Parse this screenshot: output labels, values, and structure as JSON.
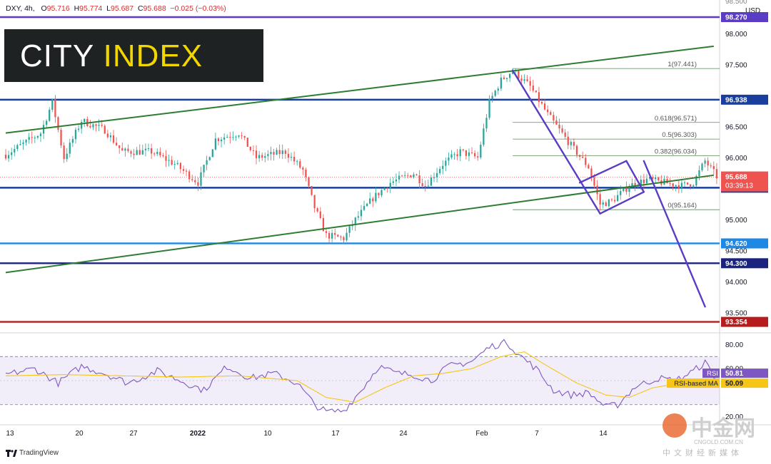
{
  "header": {
    "symbol": "DXY, 4h,",
    "o_label": "O",
    "o": "95.716",
    "h_label": "H",
    "h": "95.774",
    "l_label": "L",
    "l": "95.687",
    "c_label": "C",
    "c": "95.688",
    "chg": "−0.025 (−0.03%)"
  },
  "logo": {
    "part1": "CITY",
    "part2": "INDEX"
  },
  "footer": {
    "brand": "TradingView"
  },
  "watermark": {
    "name": "中金网",
    "url": "CNGOLD.COM.CN",
    "sub": "中文财经新媒体"
  },
  "colors": {
    "green": "#2e7d32",
    "navy": "#1a237e",
    "blue": "#1e88e5",
    "red": "#b71c1c",
    "purple": "#5b3cc4",
    "up": "#26a69a",
    "down": "#ef5350"
  },
  "chart_data": {
    "type": "candlestick",
    "symbol": "DXY",
    "timeframe": "4h",
    "currency": "USD",
    "ylim": [
      93.2,
      98.5
    ],
    "y_ticks": [
      "98.000",
      "97.500",
      "96.500",
      "96.000",
      "95.000",
      "94.500",
      "94.000",
      "93.500"
    ],
    "y_tick_values": [
      98.0,
      97.5,
      96.5,
      96.0,
      95.0,
      94.5,
      94.0,
      93.5
    ],
    "top_partial_tick": "98.500",
    "x_ticks": [
      "13",
      "20",
      "27",
      "2022",
      "10",
      "17",
      "24",
      "Feb",
      "7",
      "14"
    ],
    "price_levels": [
      {
        "label": "98.270",
        "value": 98.27,
        "color": "#5b3cc4"
      },
      {
        "label": "96.938",
        "value": 96.938,
        "color": "#1a3e9e"
      },
      {
        "label": "95.518",
        "value": 95.518,
        "color": "#1a3e9e"
      },
      {
        "label": "94.620",
        "value": 94.62,
        "color": "#1e88e5"
      },
      {
        "label": "94.300",
        "value": 94.3,
        "color": "#1a237e"
      },
      {
        "label": "93.354",
        "value": 93.354,
        "color": "#b71c1c"
      }
    ],
    "current_price": {
      "label": "95.688",
      "value": 95.688,
      "countdown": "03:39:13"
    },
    "fibonacci": [
      {
        "label": "1(97.441)",
        "value": 97.441
      },
      {
        "label": "0.618(96.571)",
        "value": 96.571
      },
      {
        "label": "0.5(96.303)",
        "value": 96.303
      },
      {
        "label": "0.382(96.034)",
        "value": 96.034
      },
      {
        "label": "0(95.164)",
        "value": 95.164
      }
    ],
    "path_anchors": [
      [
        0,
        96.05
      ],
      [
        12,
        96.4
      ],
      [
        16,
        96.9
      ],
      [
        20,
        96.0
      ],
      [
        26,
        96.6
      ],
      [
        34,
        96.45
      ],
      [
        40,
        96.1
      ],
      [
        50,
        96.1
      ],
      [
        58,
        95.9
      ],
      [
        66,
        95.6
      ],
      [
        72,
        96.3
      ],
      [
        80,
        96.4
      ],
      [
        86,
        96.0
      ],
      [
        96,
        96.1
      ],
      [
        102,
        95.8
      ],
      [
        106,
        95.2
      ],
      [
        110,
        94.75
      ],
      [
        116,
        94.7
      ],
      [
        120,
        95.0
      ],
      [
        126,
        95.35
      ],
      [
        132,
        95.6
      ],
      [
        140,
        95.75
      ],
      [
        144,
        95.55
      ],
      [
        150,
        95.9
      ],
      [
        156,
        96.1
      ],
      [
        162,
        96.0
      ],
      [
        166,
        96.9
      ],
      [
        170,
        97.25
      ],
      [
        174,
        97.41
      ],
      [
        180,
        97.15
      ],
      [
        186,
        96.7
      ],
      [
        194,
        96.2
      ],
      [
        200,
        95.85
      ],
      [
        204,
        95.25
      ],
      [
        208,
        95.3
      ],
      [
        214,
        95.55
      ],
      [
        220,
        95.65
      ],
      [
        226,
        95.6
      ],
      [
        232,
        95.55
      ],
      [
        236,
        95.6
      ],
      [
        240,
        95.95
      ],
      [
        244,
        95.7
      ]
    ],
    "green_channel": {
      "upper": [
        [
          0,
          96.4
        ],
        [
          243,
          97.8
        ]
      ],
      "lower": [
        [
          0,
          94.15
        ],
        [
          243,
          95.72
        ]
      ]
    },
    "purple_lines": [
      {
        "from": [
          174,
          97.41
        ],
        "to": [
          204,
          95.1
        ]
      },
      {
        "from": [
          197,
          95.6
        ],
        "to": [
          213,
          95.95
        ]
      },
      {
        "from": [
          204,
          95.1
        ],
        "to": [
          219,
          95.45
        ]
      },
      {
        "from": [
          213,
          95.95
        ],
        "to": [
          219,
          95.45
        ]
      },
      {
        "from": [
          219,
          95.95
        ],
        "to": [
          240,
          93.6
        ]
      }
    ],
    "rsi": {
      "label": "RSI",
      "value": "50.81",
      "ma_label": "RSI-based MA",
      "ma_value": "50.09",
      "ylim": [
        15,
        88
      ],
      "y_ticks": [
        "80.00",
        "60.00",
        "20.00"
      ],
      "y_tick_values": [
        80,
        60,
        20
      ],
      "upper_band": 70,
      "lower_band": 30,
      "rsi_anchors": [
        [
          0,
          55
        ],
        [
          10,
          60
        ],
        [
          18,
          48
        ],
        [
          26,
          62
        ],
        [
          34,
          56
        ],
        [
          42,
          48
        ],
        [
          52,
          58
        ],
        [
          60,
          50
        ],
        [
          68,
          42
        ],
        [
          76,
          62
        ],
        [
          84,
          52
        ],
        [
          92,
          56
        ],
        [
          100,
          48
        ],
        [
          106,
          30
        ],
        [
          110,
          24
        ],
        [
          116,
          25
        ],
        [
          122,
          42
        ],
        [
          128,
          62
        ],
        [
          134,
          56
        ],
        [
          140,
          55
        ],
        [
          146,
          50
        ],
        [
          152,
          62
        ],
        [
          160,
          66
        ],
        [
          166,
          78
        ],
        [
          172,
          82
        ],
        [
          176,
          72
        ],
        [
          182,
          60
        ],
        [
          188,
          42
        ],
        [
          194,
          38
        ],
        [
          200,
          40
        ],
        [
          206,
          28
        ],
        [
          210,
          30
        ],
        [
          216,
          45
        ],
        [
          224,
          52
        ],
        [
          230,
          50
        ],
        [
          236,
          58
        ],
        [
          240,
          65
        ],
        [
          244,
          51
        ]
      ],
      "ma_anchors": [
        [
          0,
          54
        ],
        [
          20,
          55
        ],
        [
          40,
          54
        ],
        [
          60,
          53
        ],
        [
          80,
          54
        ],
        [
          100,
          50
        ],
        [
          110,
          36
        ],
        [
          120,
          32
        ],
        [
          130,
          44
        ],
        [
          140,
          54
        ],
        [
          150,
          56
        ],
        [
          160,
          60
        ],
        [
          170,
          70
        ],
        [
          178,
          74
        ],
        [
          186,
          62
        ],
        [
          196,
          48
        ],
        [
          206,
          38
        ],
        [
          214,
          36
        ],
        [
          222,
          44
        ],
        [
          232,
          48
        ],
        [
          244,
          50
        ]
      ]
    }
  }
}
